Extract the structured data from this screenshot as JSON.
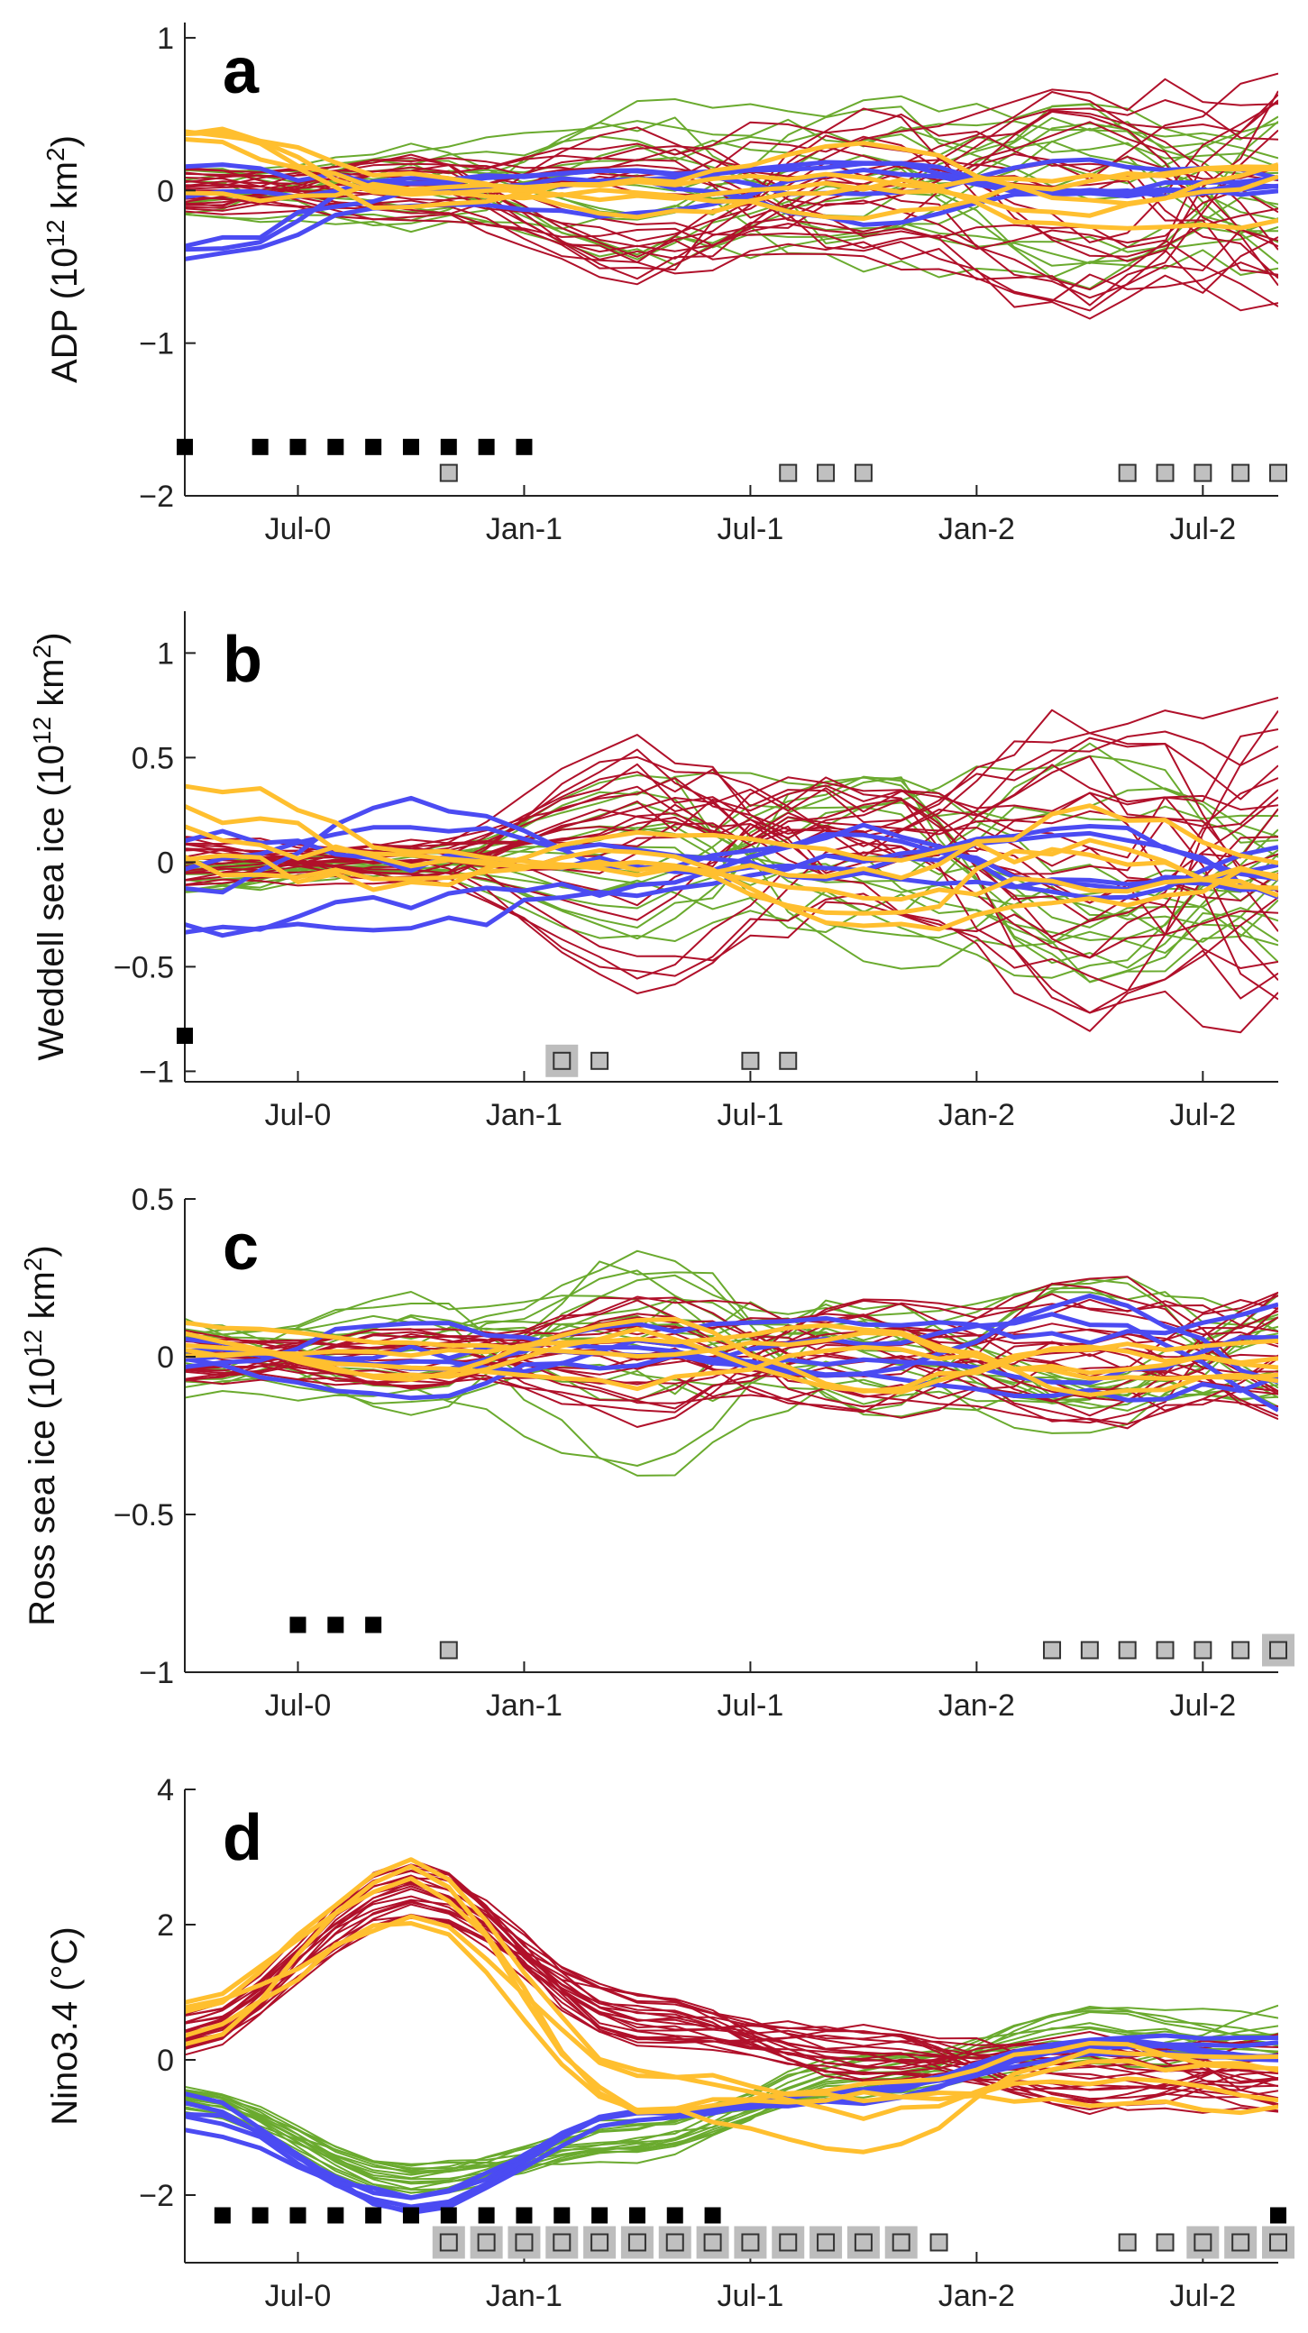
{
  "figure": {
    "colors": {
      "green": "#6aaa2e",
      "red": "#b0102a",
      "blue": "#4b4bf2",
      "yellow": "#ffbf2f",
      "marker_black": "#000000",
      "marker_gray": "#c0c0c0"
    },
    "x_tick_labels": [
      "Jul-0",
      "Jan-1",
      "Jul-1",
      "Jan-2",
      "Jul-2"
    ],
    "x_tick_months": [
      3,
      9,
      15,
      21,
      27
    ]
  },
  "chart_data": [
    {
      "type": "line",
      "panel": "a",
      "ylabel_main": "ADP (10",
      "ylabel_exp": "12",
      "ylabel_tail": " km",
      "ylabel_exp2": "2",
      "ylabel_end": ")",
      "xlim": [
        0,
        29
      ],
      "ylim": [
        -2,
        1.1
      ],
      "yticks": [
        1,
        0,
        -1,
        -2
      ],
      "ytick_labels": [
        "1",
        "0",
        "−1",
        "−2"
      ],
      "x_tick_labels": [
        "Jul-0",
        "Jan-1",
        "Jul-1",
        "Jan-2",
        "Jul-2"
      ],
      "black_squares": {
        "y": -1.68,
        "months": [
          0,
          2,
          3,
          4,
          5,
          6,
          7,
          8,
          9
        ]
      },
      "gray_squares": {
        "y": -1.85,
        "months": [
          7,
          16,
          17,
          18,
          25,
          26,
          27,
          28,
          29
        ]
      },
      "gray_highlighted": [],
      "series_groups": [
        {
          "group": "green",
          "seed": 11,
          "count": 16,
          "amp": [
            0.18,
            0.28,
            0.55,
            0.55,
            0.6
          ]
        },
        {
          "group": "red",
          "seed": 23,
          "count": 22,
          "amp": [
            0.15,
            0.22,
            0.6,
            0.5,
            0.85
          ]
        },
        {
          "group": "blue",
          "seed": 37,
          "count": 5,
          "amp": [
            0.35,
            0.12,
            0.18,
            0.2,
            0.2
          ],
          "start": -0.2
        },
        {
          "group": "yellow",
          "seed": 41,
          "count": 5,
          "amp": [
            0.3,
            0.15,
            0.2,
            0.3,
            0.3
          ],
          "start": 0.15
        }
      ]
    },
    {
      "type": "line",
      "panel": "b",
      "ylabel_main": "Weddell sea ice (10",
      "ylabel_exp": "12",
      "ylabel_tail": " km",
      "ylabel_exp2": "2",
      "ylabel_end": ")",
      "xlim": [
        0,
        29
      ],
      "ylim": [
        -1.05,
        1.2
      ],
      "yticks": [
        1,
        0.5,
        0,
        -0.5,
        -1
      ],
      "ytick_labels": [
        "1",
        "0.5",
        "0",
        "−0.5",
        "−1"
      ],
      "x_tick_labels": [
        "Jul-0",
        "Jan-1",
        "Jul-1",
        "Jan-2",
        "Jul-2"
      ],
      "black_squares": {
        "y": -0.83,
        "months": [
          0
        ]
      },
      "gray_squares": {
        "y": -0.95,
        "months": [
          10,
          11,
          15,
          16
        ]
      },
      "gray_highlighted": [
        10
      ],
      "series_groups": [
        {
          "group": "green",
          "seed": 53,
          "count": 16,
          "amp": [
            0.15,
            0.08,
            0.45,
            0.5,
            0.6
          ]
        },
        {
          "group": "red",
          "seed": 67,
          "count": 22,
          "amp": [
            0.12,
            0.1,
            0.6,
            0.45,
            0.8
          ]
        },
        {
          "group": "blue",
          "seed": 71,
          "count": 5,
          "amp": [
            0.25,
            0.3,
            0.15,
            0.2,
            0.2
          ],
          "start": -0.1
        },
        {
          "group": "yellow",
          "seed": 83,
          "count": 5,
          "amp": [
            0.35,
            0.15,
            0.15,
            0.35,
            0.25
          ],
          "start": 0.2
        }
      ]
    },
    {
      "type": "line",
      "panel": "c",
      "ylabel_main": "Ross sea ice (10",
      "ylabel_exp": "12",
      "ylabel_tail": " km",
      "ylabel_exp2": "2",
      "ylabel_end": ")",
      "xlim": [
        0,
        29
      ],
      "ylim": [
        -1,
        0.5
      ],
      "yticks": [
        0.5,
        0,
        -0.5,
        -1
      ],
      "ytick_labels": [
        "0.5",
        "0",
        "−0.5",
        "−1"
      ],
      "x_tick_labels": [
        "Jul-0",
        "Jan-1",
        "Jul-1",
        "Jan-2",
        "Jul-2"
      ],
      "black_squares": {
        "y": -0.85,
        "months": [
          3,
          4,
          5
        ]
      },
      "gray_squares": {
        "y": -0.93,
        "months": [
          7,
          23,
          24,
          25,
          26,
          27,
          28,
          29
        ]
      },
      "gray_highlighted": [
        29
      ],
      "series_groups": [
        {
          "group": "green",
          "seed": 97,
          "count": 16,
          "amp": [
            0.12,
            0.2,
            0.35,
            0.2,
            0.25
          ]
        },
        {
          "group": "red",
          "seed": 101,
          "count": 22,
          "amp": [
            0.08,
            0.1,
            0.2,
            0.2,
            0.25
          ]
        },
        {
          "group": "blue",
          "seed": 113,
          "count": 5,
          "amp": [
            0.15,
            0.15,
            0.1,
            0.12,
            0.18
          ],
          "start": 0.0
        },
        {
          "group": "yellow",
          "seed": 127,
          "count": 5,
          "amp": [
            0.08,
            0.08,
            0.12,
            0.12,
            0.12
          ],
          "start": 0.05
        }
      ]
    },
    {
      "type": "line",
      "panel": "d",
      "ylabel_main": "Nino3.4 (°C)",
      "ylabel_exp": "",
      "ylabel_tail": "",
      "ylabel_exp2": "",
      "ylabel_end": "",
      "xlim": [
        0,
        29
      ],
      "ylim": [
        -3,
        4
      ],
      "yticks": [
        4,
        2,
        0,
        -2
      ],
      "ytick_labels": [
        "4",
        "2",
        "0",
        "−2"
      ],
      "x_tick_labels": [
        "Jul-0",
        "Jan-1",
        "Jul-1",
        "Jan-2",
        "Jul-2"
      ],
      "black_squares": {
        "y": -2.3,
        "months": [
          1,
          2,
          3,
          4,
          5,
          6,
          7,
          8,
          9,
          10,
          11,
          12,
          13,
          14,
          29
        ]
      },
      "gray_squares": {
        "y": -2.7,
        "months": [
          7,
          8,
          9,
          10,
          11,
          12,
          13,
          14,
          15,
          16,
          17,
          18,
          19,
          20,
          25,
          26,
          27,
          28,
          29
        ]
      },
      "gray_highlighted": [
        7,
        8,
        9,
        10,
        11,
        12,
        13,
        14,
        15,
        16,
        17,
        18,
        19,
        27,
        28,
        29
      ],
      "series_groups": [
        {
          "group": "green",
          "seed": 131,
          "count": 16,
          "amp": [
            0.2,
            0.25,
            0.35,
            0.35,
            0.5
          ],
          "base": [
            -0.6,
            -1.8,
            -1.2,
            -0.2,
            0.3
          ]
        },
        {
          "group": "red",
          "seed": 137,
          "count": 22,
          "amp": [
            0.3,
            0.45,
            0.4,
            0.4,
            0.6
          ],
          "base": [
            0.4,
            2.5,
            0.6,
            0.1,
            -0.2
          ]
        },
        {
          "group": "blue",
          "seed": 139,
          "count": 5,
          "amp": [
            0.35,
            0.2,
            0.2,
            0.25,
            0.3
          ],
          "base": [
            -0.8,
            -2.1,
            -0.8,
            -0.4,
            0.1
          ]
        },
        {
          "group": "yellow",
          "seed": 149,
          "count": 5,
          "amp": [
            0.45,
            0.5,
            0.4,
            0.5,
            0.5
          ],
          "base": [
            0.6,
            2.5,
            -0.4,
            -0.9,
            -0.3
          ]
        }
      ]
    }
  ]
}
